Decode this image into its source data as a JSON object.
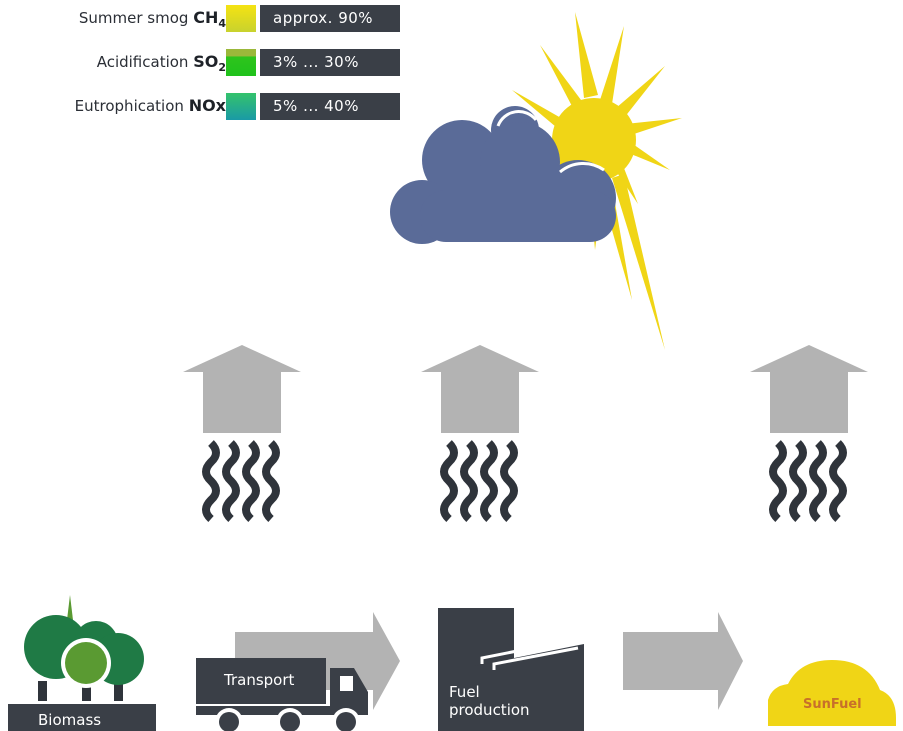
{
  "legend": {
    "rows": [
      {
        "label": "Summer smog",
        "chem": "CH",
        "sub": "4",
        "value": "approx. 90%",
        "swatch_from": "#f2df16",
        "swatch_to": "#c7d12a"
      },
      {
        "label": "Acidification",
        "chem": "SO",
        "sub": "2",
        "value": "3% ... 30%",
        "swatch_from": "#8fbf3a",
        "swatch_to": "#22c21d"
      },
      {
        "label": "Eutrophication",
        "chem": "NOx",
        "sub": "",
        "value": "5% ... 40%",
        "swatch_from": "#2dbf7a",
        "swatch_to": "#1b9ea0"
      }
    ]
  },
  "stages": {
    "biomass": "Biomass",
    "transport": "Transport",
    "fuel_line1": "Fuel",
    "fuel_line2": "production",
    "sunfuel": "SunFuel"
  },
  "colors": {
    "cloud": "#5a6b98",
    "sun": "#f0d516",
    "arrow": "#b3b3b3",
    "dark": "#3a3f47",
    "tree_dark": "#1f7a45",
    "tree_light": "#5a9a32",
    "car": "#f0d516",
    "car_text": "#c8702a"
  },
  "icons": [
    "cloud-icon",
    "sun-icon",
    "emission-arrow-icon",
    "tree-icon",
    "truck-icon",
    "factory-icon",
    "car-icon"
  ]
}
